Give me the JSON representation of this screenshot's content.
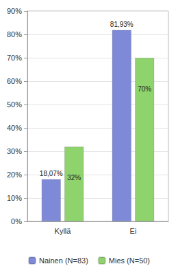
{
  "chart_data": {
    "type": "bar",
    "categories": [
      "Kyllä",
      "Ei"
    ],
    "series": [
      {
        "name": "Nainen (N=83)",
        "color": "#7e8ad8",
        "values": [
          18.07,
          81.93
        ],
        "value_labels": [
          "18,07%",
          "81,93%"
        ]
      },
      {
        "name": "Mies (N=50)",
        "color": "#8fd36c",
        "values": [
          32,
          70
        ],
        "value_labels": [
          "32%",
          "70%"
        ]
      }
    ],
    "ylim": [
      0,
      90
    ],
    "yticks": [
      {
        "value": 0,
        "label": "0%"
      },
      {
        "value": 10,
        "label": "10%"
      },
      {
        "value": 20,
        "label": "20%"
      },
      {
        "value": 30,
        "label": "30%"
      },
      {
        "value": 40,
        "label": "40%"
      },
      {
        "value": 50,
        "label": "50%"
      },
      {
        "value": 60,
        "label": "60%"
      },
      {
        "value": 70,
        "label": "70%"
      },
      {
        "value": 80,
        "label": "80%"
      },
      {
        "value": 90,
        "label": "90%"
      }
    ],
    "grid": true,
    "legend": "bottom",
    "data_labels": true
  }
}
